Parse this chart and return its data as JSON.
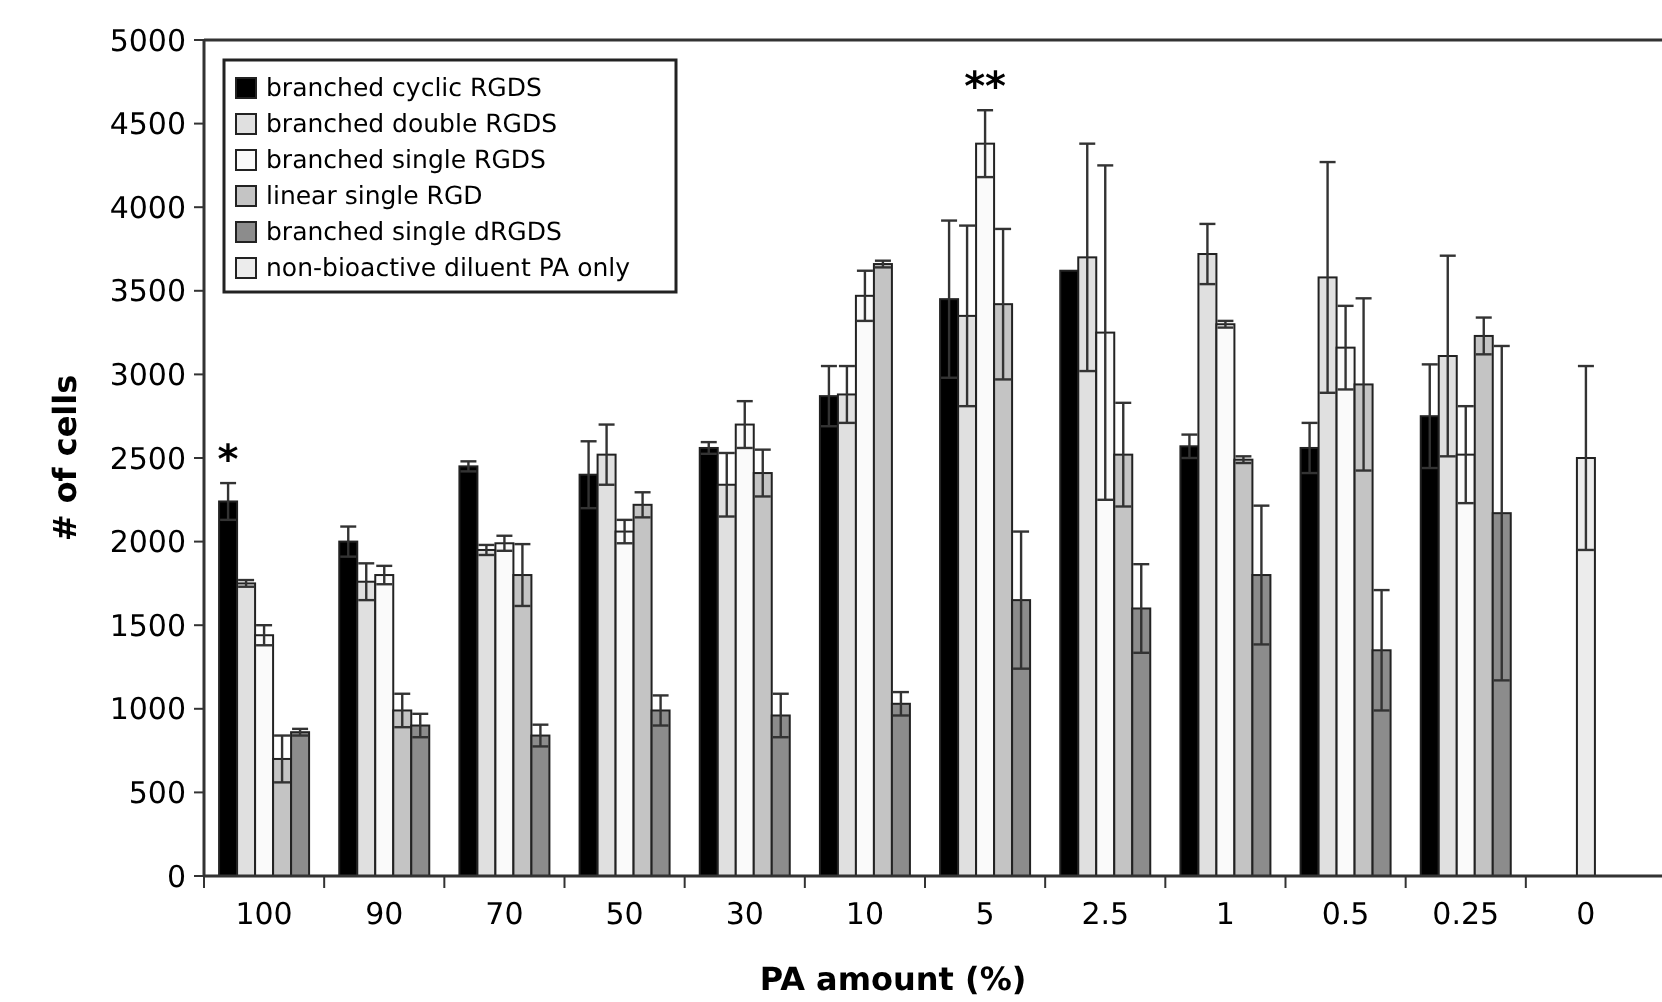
{
  "chart_data": {
    "type": "bar",
    "xlabel": "PA amount (%)",
    "ylabel": "# of cells",
    "categories": [
      "100",
      "90",
      "70",
      "50",
      "30",
      "10",
      "5",
      "2.5",
      "1",
      "0.5",
      "0.25",
      "0"
    ],
    "ylim": [
      0,
      5000
    ],
    "yticks": [
      0,
      500,
      1000,
      1500,
      2000,
      2500,
      3000,
      3500,
      4000,
      4500,
      5000
    ],
    "legend": "top left",
    "grid": false,
    "series": [
      {
        "name": "branched cyclic RGDS",
        "color": "#000000",
        "values": [
          2240,
          2000,
          2450,
          2400,
          2560,
          2870,
          3450,
          3620,
          2570,
          2560,
          2750,
          null
        ],
        "errors": [
          110,
          90,
          30,
          200,
          35,
          180,
          470,
          null,
          70,
          150,
          310,
          null
        ]
      },
      {
        "name": "branched double RGDS",
        "color": "#e0e0e0",
        "values": [
          1750,
          1760,
          1950,
          2520,
          2340,
          2880,
          3350,
          3700,
          3720,
          3580,
          3110,
          null
        ],
        "errors": [
          20,
          110,
          30,
          180,
          190,
          170,
          540,
          680,
          180,
          690,
          600,
          null
        ]
      },
      {
        "name": "branched single RGDS",
        "color": "#fafafa",
        "values": [
          1440,
          1800,
          1990,
          2060,
          2700,
          3470,
          4380,
          3250,
          3300,
          3160,
          2520,
          null
        ],
        "errors": [
          60,
          55,
          45,
          70,
          140,
          150,
          200,
          1000,
          20,
          250,
          290,
          null
        ]
      },
      {
        "name": "linear single RGD",
        "color": "#c4c4c4",
        "values": [
          700,
          990,
          1800,
          2220,
          2410,
          3660,
          3420,
          2520,
          2490,
          2940,
          3230,
          null
        ],
        "errors": [
          140,
          100,
          185,
          75,
          140,
          20,
          450,
          310,
          20,
          515,
          110,
          null
        ]
      },
      {
        "name": "branched single dRGDS",
        "color": "#8c8c8c",
        "values": [
          860,
          900,
          840,
          990,
          960,
          1030,
          1650,
          1600,
          1800,
          1350,
          2170,
          null
        ],
        "errors": [
          20,
          70,
          65,
          90,
          130,
          70,
          410,
          265,
          415,
          360,
          1000,
          null
        ]
      },
      {
        "name": "non-bioactive diluent PA only",
        "color": "#ececec",
        "values": [
          null,
          null,
          null,
          null,
          null,
          null,
          null,
          null,
          null,
          null,
          null,
          2500
        ],
        "errors": [
          null,
          null,
          null,
          null,
          null,
          null,
          null,
          null,
          null,
          null,
          null,
          550
        ]
      }
    ],
    "annotations": [
      "*",
      {
        "text": "**",
        "x": "5",
        "y": 4380
      }
    ]
  }
}
